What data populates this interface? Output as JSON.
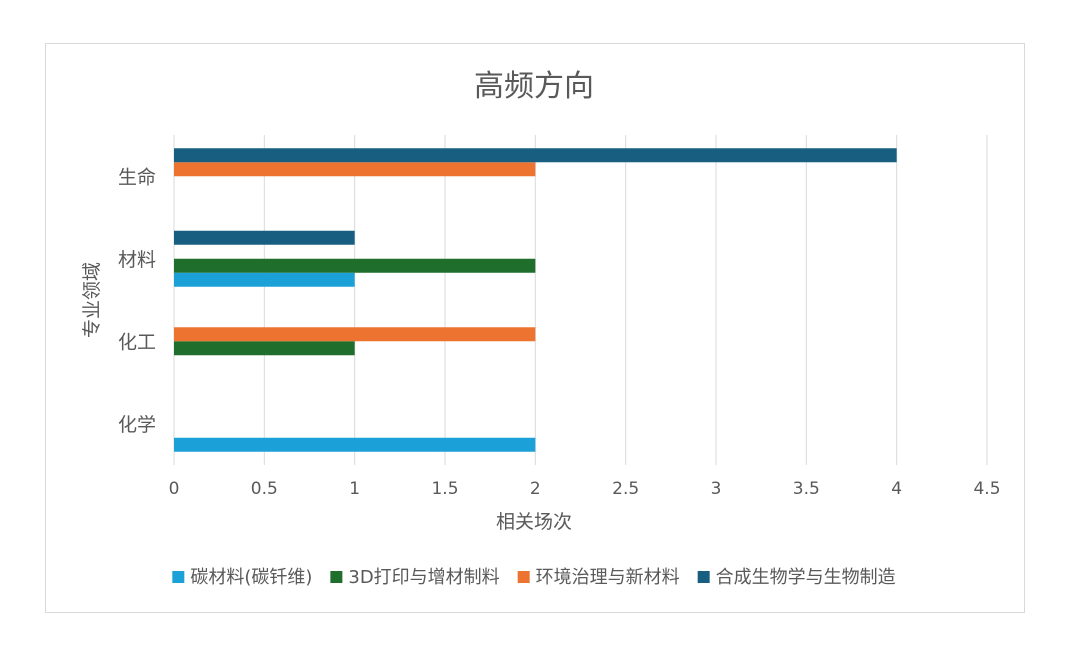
{
  "chart_data": {
    "type": "bar",
    "orientation": "horizontal",
    "title": "高频方向",
    "xlabel": "相关场次",
    "ylabel": "专业领域",
    "categories": [
      "化学",
      "化工",
      "材料",
      "生命"
    ],
    "xlim": [
      0,
      4.5
    ],
    "xticks": [
      0,
      0.5,
      1,
      1.5,
      2,
      2.5,
      3,
      3.5,
      4,
      4.5
    ],
    "xtick_labels": [
      "0",
      "0.5",
      "1",
      "1.5",
      "2",
      "2.5",
      "3",
      "3.5",
      "4",
      "4.5"
    ],
    "grid": true,
    "legend_position": "bottom",
    "series": [
      {
        "name": "碳材料(碳钎维)",
        "color": "#1ba1d8",
        "values": [
          2,
          0,
          1,
          0
        ]
      },
      {
        "name": "3D打印与增材制料",
        "color": "#1f6e2c",
        "values": [
          0,
          1,
          2,
          0
        ]
      },
      {
        "name": "环境治理与新材料",
        "color": "#ed7430",
        "values": [
          0,
          2,
          0,
          2
        ]
      },
      {
        "name": "合成生物学与生物制造",
        "color": "#175e80",
        "values": [
          0,
          0,
          1,
          4
        ]
      }
    ]
  }
}
